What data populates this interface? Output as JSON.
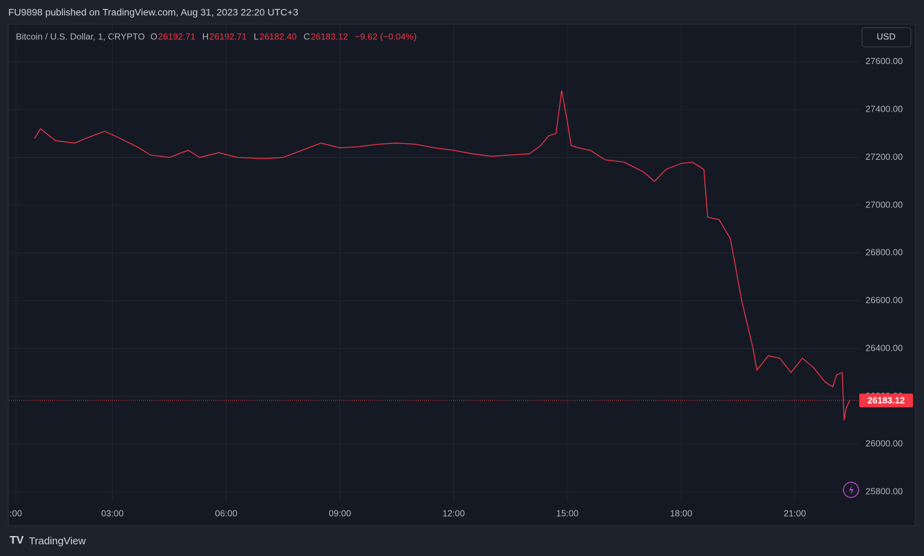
{
  "header": {
    "title": "FU9898 published on TradingView.com, Aug 31, 2023 22:20 UTC+3"
  },
  "chart_data": {
    "type": "line",
    "symbol": "Bitcoin / U.S. Dollar, 1, CRYPTO",
    "ohlc": {
      "open_key": "O",
      "open": "26192.71",
      "high_key": "H",
      "high": "26192.71",
      "low_key": "L",
      "low": "26182.40",
      "close_key": "C",
      "close": "26183.12",
      "change": "−9.62 (−0.04%)"
    },
    "currency": "USD",
    "color": "#f23645",
    "last_price": 26183.12,
    "x": [
      0.95,
      1.1,
      1.5,
      2.0,
      2.3,
      2.8,
      3.2,
      3.7,
      4.0,
      4.5,
      5.0,
      5.3,
      5.8,
      6.3,
      7.0,
      7.5,
      8.0,
      8.5,
      9.0,
      9.5,
      10.0,
      10.5,
      11.0,
      11.5,
      12.0,
      12.5,
      13.0,
      13.5,
      14.0,
      14.3,
      14.5,
      14.7,
      14.85,
      15.0,
      15.1,
      15.3,
      15.6,
      16.0,
      16.5,
      17.0,
      17.3,
      17.6,
      18.0,
      18.3,
      18.6,
      18.7,
      19.0,
      19.3,
      19.6,
      19.9,
      20.0,
      20.3,
      20.6,
      20.9,
      21.2,
      21.5,
      21.8,
      22.0,
      22.1,
      22.25,
      22.3,
      22.35,
      22.45
    ],
    "values": [
      27280,
      27320,
      27270,
      27260,
      27280,
      27310,
      27280,
      27240,
      27210,
      27200,
      27230,
      27200,
      27220,
      27200,
      27195,
      27200,
      27230,
      27260,
      27240,
      27245,
      27255,
      27260,
      27255,
      27240,
      27230,
      27215,
      27205,
      27210,
      27215,
      27250,
      27290,
      27300,
      27480,
      27350,
      27250,
      27240,
      27230,
      27190,
      27180,
      27140,
      27100,
      27150,
      27175,
      27180,
      27150,
      26950,
      26940,
      26860,
      26600,
      26400,
      26310,
      26370,
      26360,
      26300,
      26360,
      26320,
      26260,
      26240,
      26290,
      26300,
      26100,
      26150,
      26183.12
    ],
    "xlim": [
      0.27,
      22.7
    ],
    "xticks": [
      {
        "value": 0.45,
        "label": ":00"
      },
      {
        "value": 3,
        "label": "03:00"
      },
      {
        "value": 6,
        "label": "06:00"
      },
      {
        "value": 9,
        "label": "09:00"
      },
      {
        "value": 12,
        "label": "12:00"
      },
      {
        "value": 15,
        "label": "15:00"
      },
      {
        "value": 18,
        "label": "18:00"
      },
      {
        "value": 21,
        "label": "21:00"
      }
    ],
    "ylim": [
      25760,
      27755
    ],
    "yticks": [
      {
        "value": 25800,
        "label": "25800.00"
      },
      {
        "value": 26000,
        "label": "26000.00"
      },
      {
        "value": 26200,
        "label": "26200.00"
      },
      {
        "value": 26400,
        "label": "26400.00"
      },
      {
        "value": 26600,
        "label": "26600.00"
      },
      {
        "value": 26800,
        "label": "26800.00"
      },
      {
        "value": 27000,
        "label": "27000.00"
      },
      {
        "value": 27200,
        "label": "27200.00"
      },
      {
        "value": 27400,
        "label": "27400.00"
      },
      {
        "value": 27600,
        "label": "27600.00"
      }
    ],
    "grid": true
  },
  "footer": {
    "brand": "TradingView"
  }
}
